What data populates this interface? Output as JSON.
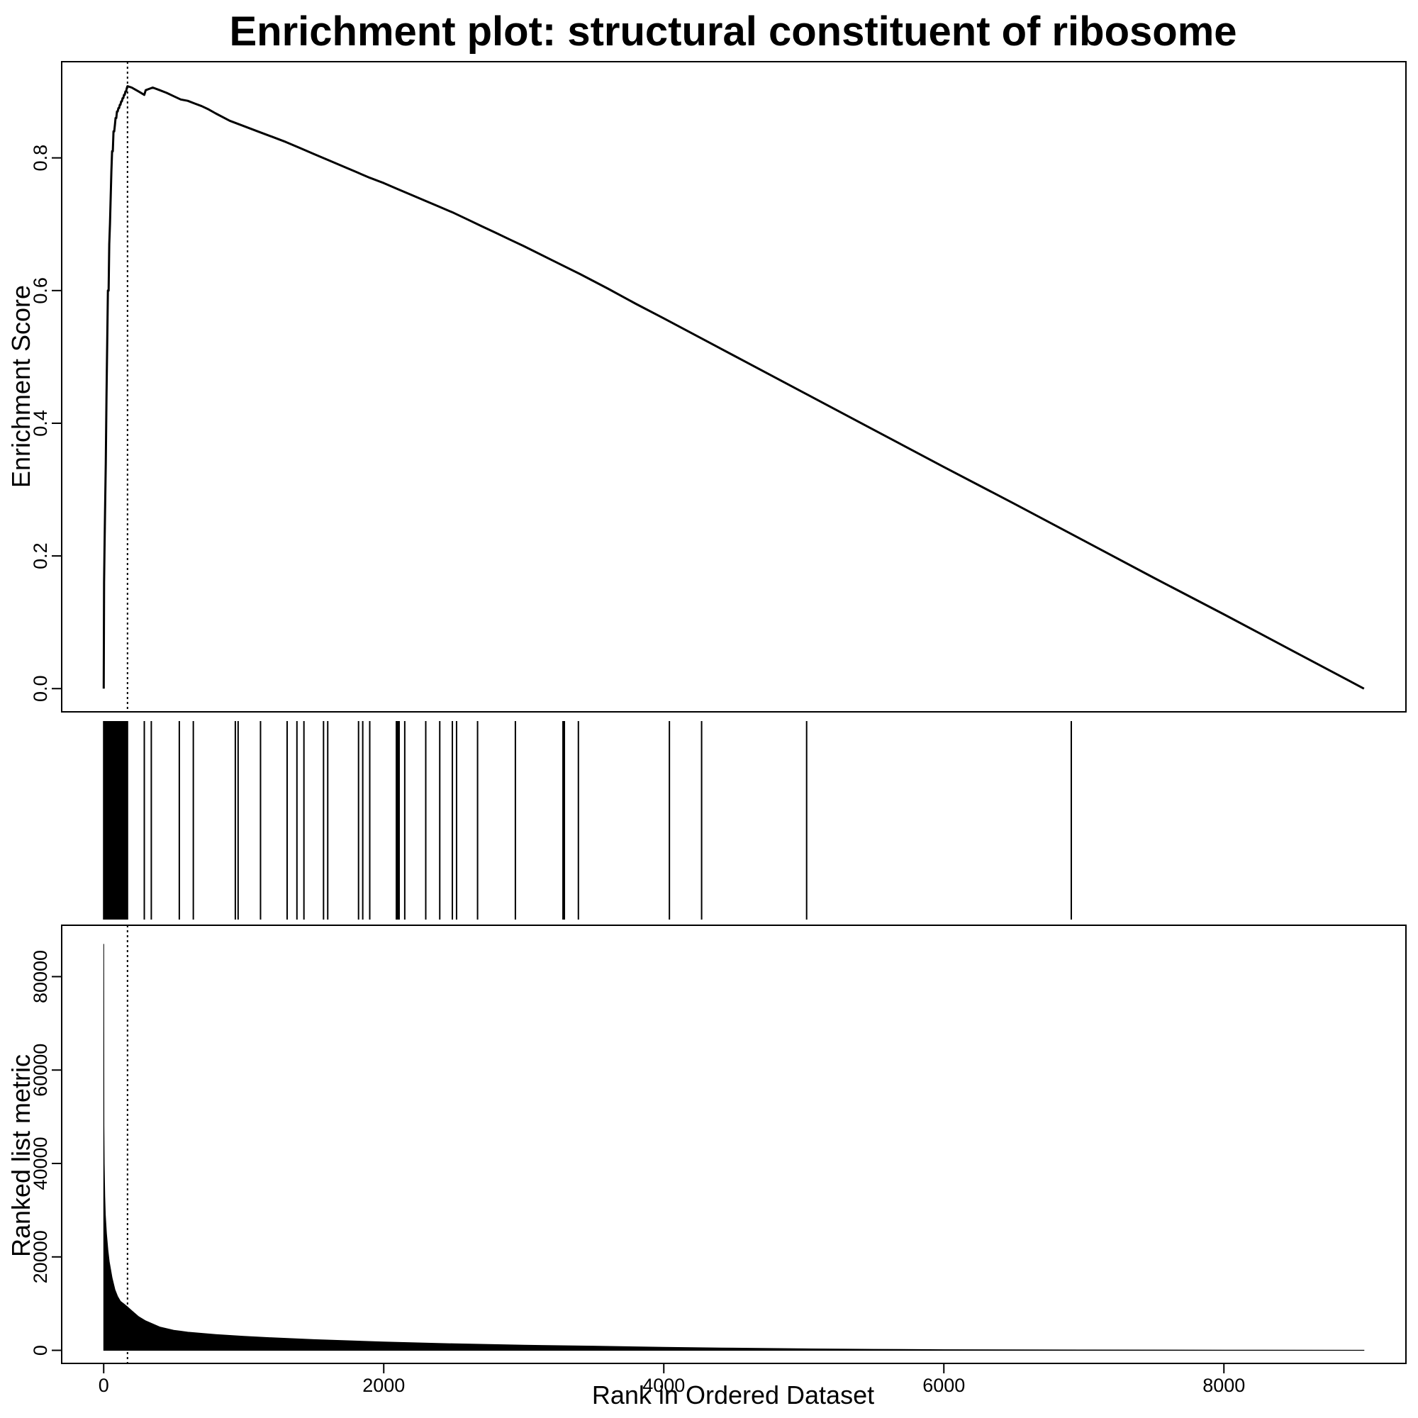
{
  "chart_data": [
    {
      "type": "line",
      "panel": "enrichment-score",
      "title": "Enrichment plot: structural constituent of ribosome",
      "xlabel": "",
      "ylabel": "Enrichment Score",
      "xlim": [
        -300,
        9300
      ],
      "ylim": [
        -0.035,
        0.945
      ],
      "yticks": [
        0.0,
        0.2,
        0.4,
        0.6,
        0.8
      ],
      "ytick_labels": [
        "0.0",
        "0.2",
        "0.4",
        "0.6",
        "0.8"
      ],
      "peak_rank": 170,
      "grid": false,
      "x": [
        0,
        3,
        6,
        10,
        15,
        20,
        25,
        30,
        35,
        40,
        45,
        50,
        55,
        60,
        65,
        70,
        75,
        80,
        85,
        90,
        95,
        100,
        105,
        110,
        115,
        120,
        125,
        130,
        135,
        140,
        145,
        150,
        155,
        160,
        165,
        170,
        200,
        250,
        290,
        300,
        350,
        400,
        450,
        500,
        550,
        600,
        650,
        700,
        750,
        800,
        900,
        1000,
        1100,
        1200,
        1300,
        1400,
        1500,
        1600,
        1700,
        1800,
        1900,
        2000,
        2100,
        2200,
        2300,
        2400,
        2500,
        2600,
        2700,
        2800,
        2900,
        3000,
        3200,
        3400,
        3600,
        3800,
        4000,
        4500,
        5000,
        5500,
        6000,
        6500,
        7000,
        7500,
        8000,
        8500,
        9000
      ],
      "y": [
        0.0,
        0.16,
        0.21,
        0.27,
        0.34,
        0.44,
        0.52,
        0.6,
        0.6,
        0.67,
        0.7,
        0.74,
        0.78,
        0.81,
        0.81,
        0.84,
        0.84,
        0.85,
        0.86,
        0.86,
        0.87,
        0.87,
        0.875,
        0.875,
        0.88,
        0.88,
        0.885,
        0.885,
        0.89,
        0.89,
        0.895,
        0.895,
        0.9,
        0.9,
        0.905,
        0.908,
        0.906,
        0.9,
        0.895,
        0.902,
        0.906,
        0.902,
        0.898,
        0.893,
        0.888,
        0.886,
        0.882,
        0.878,
        0.873,
        0.867,
        0.856,
        0.848,
        0.84,
        0.832,
        0.824,
        0.815,
        0.806,
        0.797,
        0.788,
        0.779,
        0.77,
        0.762,
        0.753,
        0.744,
        0.735,
        0.726,
        0.717,
        0.707,
        0.697,
        0.687,
        0.677,
        0.667,
        0.646,
        0.625,
        0.603,
        0.58,
        0.558,
        0.502,
        0.446,
        0.39,
        0.334,
        0.279,
        0.223,
        0.167,
        0.112,
        0.056,
        0.0
      ]
    },
    {
      "type": "rug",
      "panel": "gene-set-hits",
      "xlim": [
        -300,
        9300
      ],
      "hit_ranks": [
        0,
        3,
        6,
        9,
        12,
        15,
        18,
        21,
        24,
        27,
        30,
        33,
        36,
        40,
        44,
        48,
        52,
        56,
        60,
        64,
        68,
        72,
        76,
        80,
        84,
        88,
        92,
        96,
        100,
        104,
        108,
        112,
        116,
        120,
        125,
        130,
        135,
        140,
        145,
        150,
        155,
        160,
        165,
        170,
        290,
        340,
        540,
        640,
        940,
        960,
        1120,
        1310,
        1380,
        1430,
        1570,
        1600,
        1820,
        1850,
        1900,
        2090,
        2100,
        2110,
        2150,
        2300,
        2400,
        2490,
        2520,
        2670,
        2940,
        3280,
        3290,
        3390,
        4040,
        4270,
        5020,
        6910
      ]
    },
    {
      "type": "area",
      "panel": "ranked-list-metric",
      "xlabel": "Rank in Ordered Dataset",
      "ylabel": "Ranked list metric",
      "xlim": [
        -300,
        9300
      ],
      "ylim": [
        -2800,
        91000
      ],
      "xticks": [
        0,
        2000,
        4000,
        6000,
        8000
      ],
      "xtick_labels": [
        "0",
        "2000",
        "4000",
        "6000",
        "8000"
      ],
      "yticks": [
        0,
        20000,
        40000,
        60000,
        80000
      ],
      "ytick_labels": [
        "0",
        "20000",
        "40000",
        "60000",
        "80000"
      ],
      "grid": false,
      "x": [
        0,
        2,
        4,
        8,
        12,
        20,
        30,
        40,
        60,
        80,
        100,
        120,
        150,
        170,
        200,
        250,
        300,
        400,
        500,
        600,
        800,
        1000,
        1200,
        1500,
        2000,
        2500,
        3000,
        3500,
        4000,
        4500,
        5000,
        5500,
        6000,
        7000,
        8000,
        9000
      ],
      "y": [
        87000,
        48000,
        40000,
        33000,
        29000,
        25000,
        21500,
        19000,
        15500,
        13000,
        11500,
        10500,
        9800,
        9300,
        8500,
        7200,
        6300,
        5000,
        4300,
        3900,
        3400,
        3000,
        2700,
        2300,
        1800,
        1400,
        1100,
        900,
        650,
        480,
        330,
        220,
        150,
        90,
        50,
        20
      ]
    }
  ]
}
